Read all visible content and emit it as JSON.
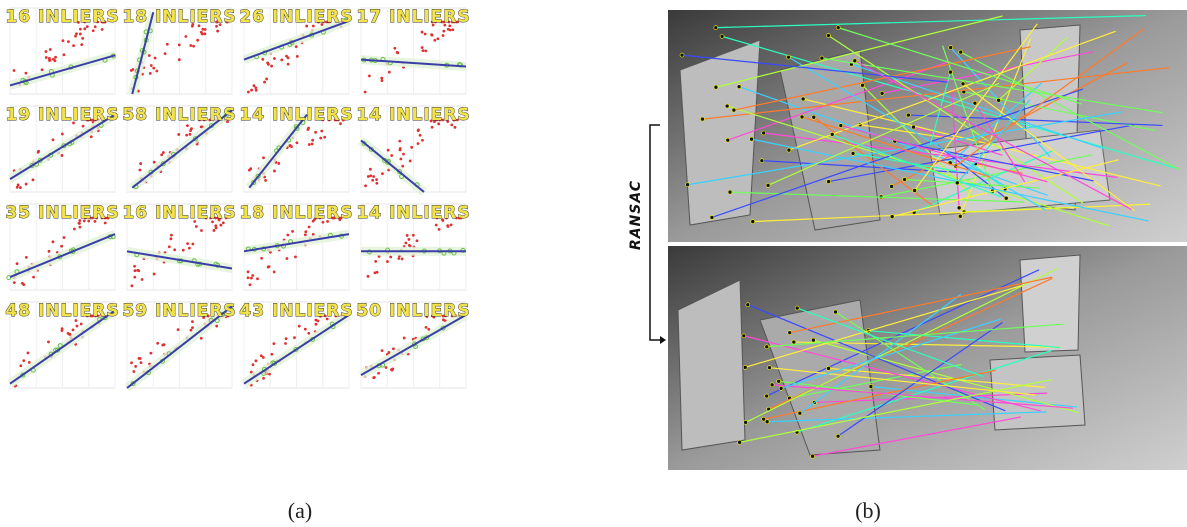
{
  "panels": [
    {
      "label": "16 INLIERS"
    },
    {
      "label": "18 INLIERS"
    },
    {
      "label": "26 INLIERS"
    },
    {
      "label": "17 INLIERS"
    },
    {
      "label": "19 INLIERS"
    },
    {
      "label": "58 INLIERS"
    },
    {
      "label": "14 INLIERS"
    },
    {
      "label": "14 INLIERS"
    },
    {
      "label": "35 INLIERS"
    },
    {
      "label": "16 INLIERS"
    },
    {
      "label": "18 INLIERS"
    },
    {
      "label": "14 INLIERS"
    },
    {
      "label": "48 INLIERS"
    },
    {
      "label": "59 INLIERS"
    },
    {
      "label": "43 INLIERS"
    },
    {
      "label": "50 INLIERS"
    }
  ],
  "side_label": "RANSAC",
  "captions": [
    "(a)",
    "(b)"
  ]
}
